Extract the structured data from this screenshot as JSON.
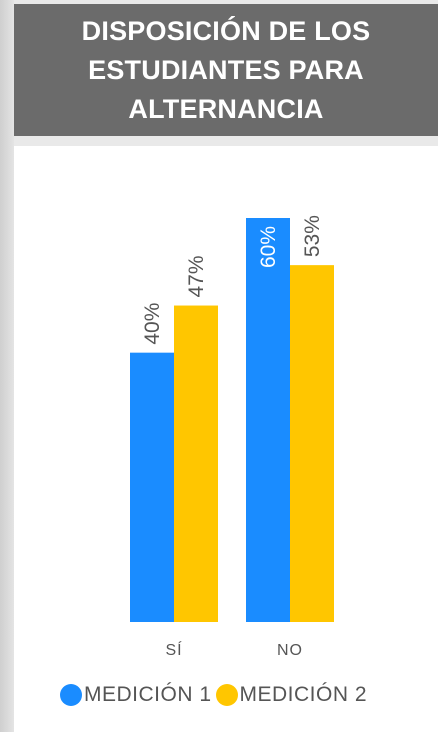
{
  "chart_data": {
    "type": "bar",
    "title": "DISPOSICIÓN DE LOS ESTUDIANTES PARA ALTERNANCIA",
    "categories": [
      "SÍ",
      "NO"
    ],
    "series": [
      {
        "name": "MEDICIÓN 1",
        "values": [
          40,
          60
        ],
        "labels": [
          "40%",
          "60%"
        ],
        "color": "#1a8cff"
      },
      {
        "name": "MEDICIÓN 2",
        "values": [
          47,
          53
        ],
        "labels": [
          "47%",
          "53%"
        ],
        "color": "#ffc600"
      }
    ],
    "ylim": [
      0,
      60
    ],
    "grid": false,
    "legend_position": "bottom"
  }
}
